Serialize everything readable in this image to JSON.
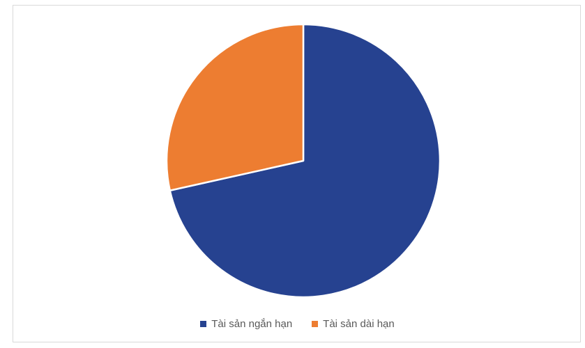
{
  "chart_data": {
    "type": "pie",
    "title": "",
    "start_angle_deg": 0,
    "direction": "clockwise",
    "legend_position": "bottom",
    "slices": [
      {
        "label": "Tài sản ngắn hạn",
        "value": 71.5,
        "color": "#264290"
      },
      {
        "label": "Tài sản dài hạn",
        "value": 28.5,
        "color": "#ED7D31"
      }
    ]
  }
}
